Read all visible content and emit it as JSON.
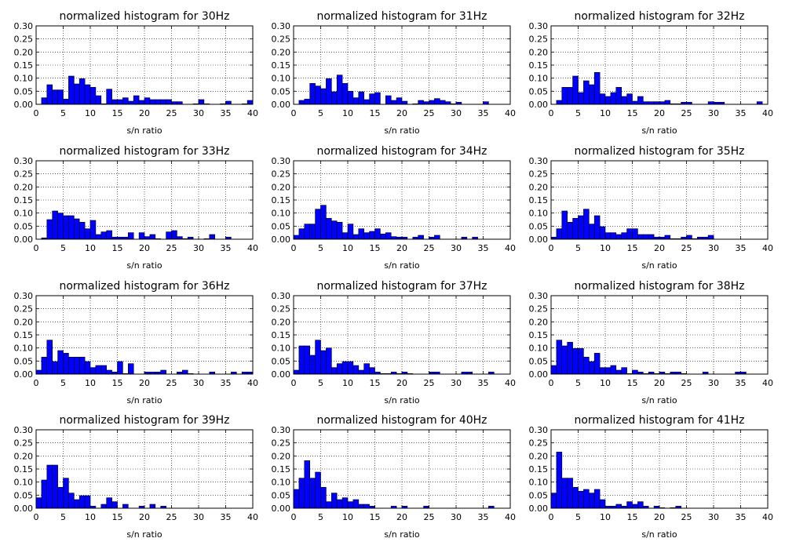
{
  "chart_data": [
    {
      "type": "bar",
      "title": "normalized histogram for 30Hz",
      "xlabel": "s/n ratio",
      "ylabel": "",
      "xlim": [
        0,
        40
      ],
      "ylim": [
        0,
        0.3
      ],
      "bin_width": 1,
      "grid": true,
      "bar_color": "#0000ff",
      "x": [
        1,
        2,
        3,
        4,
        5,
        6,
        7,
        8,
        9,
        10,
        11,
        12,
        13,
        14,
        15,
        16,
        17,
        18,
        19,
        20,
        21,
        22,
        23,
        24,
        25,
        26,
        29,
        30,
        31,
        34,
        35,
        38,
        39
      ],
      "values": [
        0.025,
        0.075,
        0.055,
        0.055,
        0.02,
        0.108,
        0.078,
        0.098,
        0.075,
        0.065,
        0.033,
        0.002,
        0.058,
        0.018,
        0.018,
        0.025,
        0.012,
        0.033,
        0.015,
        0.025,
        0.018,
        0.018,
        0.018,
        0.018,
        0.01,
        0.01,
        0.002,
        0.018,
        0.002,
        0.002,
        0.012,
        0.002,
        0.015
      ]
    },
    {
      "type": "bar",
      "title": "normalized histogram for 31Hz",
      "xlabel": "s/n ratio",
      "ylabel": "",
      "xlim": [
        0,
        40
      ],
      "ylim": [
        0,
        0.3
      ],
      "bin_width": 1,
      "grid": true,
      "bar_color": "#0000ff",
      "x": [
        1,
        2,
        3,
        4,
        5,
        6,
        7,
        8,
        9,
        10,
        11,
        12,
        13,
        14,
        15,
        17,
        18,
        19,
        20,
        22,
        23,
        24,
        25,
        26,
        27,
        28,
        29,
        30,
        35
      ],
      "values": [
        0.015,
        0.02,
        0.08,
        0.07,
        0.06,
        0.098,
        0.048,
        0.112,
        0.08,
        0.05,
        0.025,
        0.048,
        0.018,
        0.04,
        0.045,
        0.033,
        0.015,
        0.025,
        0.012,
        0.002,
        0.015,
        0.01,
        0.015,
        0.022,
        0.015,
        0.01,
        0.002,
        0.008,
        0.01
      ]
    },
    {
      "type": "bar",
      "title": "normalized histogram for 32Hz",
      "xlabel": "s/n ratio",
      "ylabel": "",
      "xlim": [
        0,
        40
      ],
      "ylim": [
        0,
        0.3
      ],
      "bin_width": 1,
      "grid": true,
      "bar_color": "#0000ff",
      "x": [
        1,
        2,
        3,
        4,
        5,
        6,
        7,
        8,
        9,
        10,
        11,
        12,
        13,
        14,
        15,
        16,
        17,
        18,
        19,
        20,
        21,
        22,
        23,
        24,
        25,
        29,
        30,
        31,
        38
      ],
      "values": [
        0.015,
        0.065,
        0.065,
        0.108,
        0.045,
        0.09,
        0.075,
        0.122,
        0.04,
        0.03,
        0.045,
        0.065,
        0.03,
        0.04,
        0.012,
        0.03,
        0.01,
        0.01,
        0.01,
        0.01,
        0.015,
        0.002,
        0.002,
        0.008,
        0.008,
        0.01,
        0.008,
        0.008,
        0.01
      ]
    },
    {
      "type": "bar",
      "title": "normalized histogram for 33Hz",
      "xlabel": "s/n ratio",
      "ylabel": "",
      "xlim": [
        0,
        40
      ],
      "ylim": [
        0,
        0.3
      ],
      "bin_width": 1,
      "grid": true,
      "bar_color": "#0000ff",
      "x": [
        1,
        2,
        3,
        4,
        5,
        6,
        7,
        8,
        9,
        10,
        11,
        12,
        13,
        14,
        15,
        16,
        17,
        19,
        20,
        21,
        22,
        24,
        25,
        26,
        27,
        28,
        31,
        32,
        35
      ],
      "values": [
        0.005,
        0.075,
        0.108,
        0.1,
        0.09,
        0.09,
        0.078,
        0.065,
        0.04,
        0.072,
        0.018,
        0.028,
        0.033,
        0.008,
        0.008,
        0.008,
        0.025,
        0.025,
        0.01,
        0.018,
        0.002,
        0.028,
        0.033,
        0.01,
        0.002,
        0.008,
        0.002,
        0.018,
        0.008
      ]
    },
    {
      "type": "bar",
      "title": "normalized histogram for 34Hz",
      "xlabel": "s/n ratio",
      "ylabel": "",
      "xlim": [
        0,
        40
      ],
      "ylim": [
        0,
        0.3
      ],
      "bin_width": 1,
      "grid": true,
      "bar_color": "#0000ff",
      "x": [
        0,
        1,
        2,
        3,
        4,
        5,
        6,
        7,
        8,
        9,
        10,
        11,
        12,
        13,
        14,
        15,
        16,
        17,
        18,
        19,
        20,
        22,
        23,
        25,
        26,
        31,
        33
      ],
      "values": [
        0.015,
        0.04,
        0.058,
        0.058,
        0.115,
        0.13,
        0.08,
        0.07,
        0.065,
        0.025,
        0.058,
        0.018,
        0.04,
        0.025,
        0.03,
        0.04,
        0.02,
        0.025,
        0.01,
        0.008,
        0.008,
        0.008,
        0.015,
        0.008,
        0.015,
        0.008,
        0.008
      ]
    },
    {
      "type": "bar",
      "title": "normalized histogram for 35Hz",
      "xlabel": "s/n ratio",
      "ylabel": "",
      "xlim": [
        0,
        40
      ],
      "ylim": [
        0,
        0.3
      ],
      "bin_width": 1,
      "grid": true,
      "bar_color": "#0000ff",
      "x": [
        0,
        1,
        2,
        3,
        4,
        5,
        6,
        7,
        8,
        9,
        10,
        11,
        12,
        13,
        14,
        15,
        16,
        17,
        18,
        19,
        20,
        21,
        22,
        23,
        24,
        25,
        26,
        27,
        28,
        29
      ],
      "values": [
        0.008,
        0.04,
        0.108,
        0.065,
        0.08,
        0.09,
        0.115,
        0.058,
        0.09,
        0.048,
        0.025,
        0.025,
        0.018,
        0.025,
        0.04,
        0.04,
        0.018,
        0.018,
        0.018,
        0.008,
        0.008,
        0.015,
        0.002,
        0.002,
        0.008,
        0.015,
        0.002,
        0.008,
        0.008,
        0.015
      ]
    },
    {
      "type": "bar",
      "title": "normalized histogram for 36Hz",
      "xlabel": "s/n ratio",
      "ylabel": "",
      "xlim": [
        0,
        40
      ],
      "ylim": [
        0,
        0.3
      ],
      "bin_width": 1,
      "grid": true,
      "bar_color": "#0000ff",
      "x": [
        0,
        1,
        2,
        3,
        4,
        5,
        6,
        7,
        8,
        9,
        10,
        11,
        12,
        13,
        14,
        15,
        16,
        17,
        20,
        21,
        22,
        23,
        26,
        27,
        28,
        32,
        36,
        38,
        39
      ],
      "values": [
        0.015,
        0.065,
        0.13,
        0.048,
        0.09,
        0.08,
        0.065,
        0.065,
        0.065,
        0.048,
        0.025,
        0.033,
        0.033,
        0.015,
        0.008,
        0.048,
        0.002,
        0.04,
        0.008,
        0.008,
        0.008,
        0.015,
        0.008,
        0.015,
        0.002,
        0.008,
        0.008,
        0.008,
        0.008
      ]
    },
    {
      "type": "bar",
      "title": "normalized histogram for 37Hz",
      "xlabel": "s/n ratio",
      "ylabel": "",
      "xlim": [
        0,
        40
      ],
      "ylim": [
        0,
        0.3
      ],
      "bin_width": 1,
      "grid": true,
      "bar_color": "#0000ff",
      "x": [
        0,
        1,
        2,
        3,
        4,
        5,
        6,
        7,
        8,
        9,
        10,
        11,
        12,
        13,
        14,
        15,
        16,
        17,
        18,
        19,
        20,
        21,
        25,
        26,
        31,
        32,
        36
      ],
      "values": [
        0.015,
        0.108,
        0.108,
        0.072,
        0.13,
        0.09,
        0.1,
        0.025,
        0.04,
        0.048,
        0.048,
        0.033,
        0.015,
        0.04,
        0.025,
        0.008,
        0.002,
        0.002,
        0.008,
        0.002,
        0.008,
        0.002,
        0.008,
        0.008,
        0.008,
        0.008,
        0.008
      ]
    },
    {
      "type": "bar",
      "title": "normalized histogram for 38Hz",
      "xlabel": "s/n ratio",
      "ylabel": "",
      "xlim": [
        0,
        40
      ],
      "ylim": [
        0,
        0.3
      ],
      "bin_width": 1,
      "grid": true,
      "bar_color": "#0000ff",
      "x": [
        0,
        1,
        2,
        3,
        4,
        5,
        6,
        7,
        8,
        9,
        10,
        11,
        12,
        13,
        14,
        15,
        16,
        17,
        18,
        19,
        20,
        21,
        22,
        23,
        24,
        28,
        34,
        35
      ],
      "values": [
        0.033,
        0.13,
        0.108,
        0.122,
        0.098,
        0.098,
        0.065,
        0.048,
        0.08,
        0.025,
        0.025,
        0.033,
        0.015,
        0.025,
        0.002,
        0.015,
        0.008,
        0.002,
        0.008,
        0.002,
        0.008,
        0.002,
        0.008,
        0.008,
        0.002,
        0.008,
        0.008,
        0.008
      ]
    },
    {
      "type": "bar",
      "title": "normalized histogram for 39Hz",
      "xlabel": "s/n ratio",
      "ylabel": "",
      "xlim": [
        0,
        40
      ],
      "ylim": [
        0,
        0.3
      ],
      "bin_width": 1,
      "grid": true,
      "bar_color": "#0000ff",
      "x": [
        0,
        1,
        2,
        3,
        4,
        5,
        6,
        7,
        8,
        9,
        10,
        12,
        13,
        14,
        16,
        19,
        21,
        23
      ],
      "values": [
        0.04,
        0.108,
        0.165,
        0.165,
        0.08,
        0.115,
        0.058,
        0.033,
        0.048,
        0.048,
        0.008,
        0.015,
        0.04,
        0.025,
        0.015,
        0.008,
        0.015,
        0.008
      ]
    },
    {
      "type": "bar",
      "title": "normalized histogram for 40Hz",
      "xlabel": "s/n ratio",
      "ylabel": "",
      "xlim": [
        0,
        40
      ],
      "ylim": [
        0,
        0.3
      ],
      "bin_width": 1,
      "grid": true,
      "bar_color": "#0000ff",
      "x": [
        0,
        1,
        2,
        3,
        4,
        5,
        6,
        7,
        8,
        9,
        10,
        11,
        12,
        13,
        14,
        18,
        20,
        24,
        36
      ],
      "values": [
        0.072,
        0.115,
        0.182,
        0.115,
        0.138,
        0.08,
        0.025,
        0.058,
        0.033,
        0.04,
        0.025,
        0.033,
        0.015,
        0.015,
        0.008,
        0.008,
        0.008,
        0.008,
        0.008
      ]
    },
    {
      "type": "bar",
      "title": "normalized histogram for 41Hz",
      "xlabel": "s/n ratio",
      "ylabel": "",
      "xlim": [
        0,
        40
      ],
      "ylim": [
        0,
        0.3
      ],
      "bin_width": 1,
      "grid": true,
      "bar_color": "#0000ff",
      "x": [
        0,
        1,
        2,
        3,
        4,
        5,
        6,
        7,
        8,
        9,
        10,
        11,
        12,
        13,
        14,
        15,
        16,
        17,
        19,
        20,
        22,
        23
      ],
      "values": [
        0.058,
        0.215,
        0.115,
        0.115,
        0.08,
        0.065,
        0.072,
        0.058,
        0.072,
        0.033,
        0.008,
        0.008,
        0.015,
        0.008,
        0.025,
        0.015,
        0.025,
        0.008,
        0.008,
        0.002,
        0.002,
        0.008
      ]
    }
  ],
  "axis": {
    "yticks": [
      "0.00",
      "0.05",
      "0.10",
      "0.15",
      "0.20",
      "0.25",
      "0.30"
    ],
    "xticks": [
      "0",
      "5",
      "10",
      "15",
      "20",
      "25",
      "30",
      "35",
      "40"
    ]
  }
}
